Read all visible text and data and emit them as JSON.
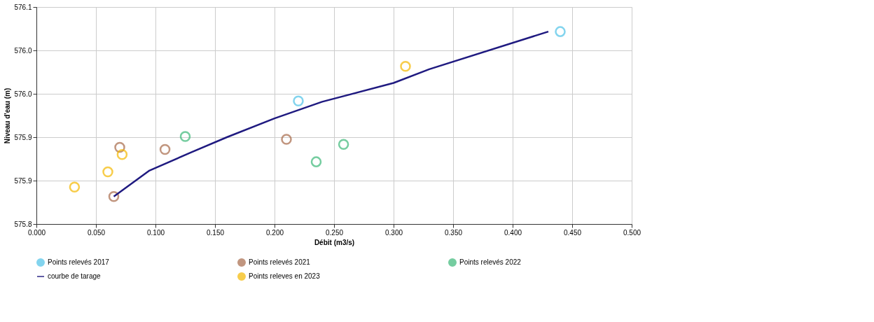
{
  "chart_data": {
    "type": "scatter",
    "xlabel": "Débit (m3/s)",
    "ylabel": "Niveau d'eau (m)",
    "xlim": [
      0,
      0.5
    ],
    "xticks": [
      {
        "value": 0,
        "label": "0.000"
      },
      {
        "value": 0.05,
        "label": "0.050"
      },
      {
        "value": 0.1,
        "label": "0.100"
      },
      {
        "value": 0.15,
        "label": "0.150"
      },
      {
        "value": 0.2,
        "label": "0.200"
      },
      {
        "value": 0.25,
        "label": "0.250"
      },
      {
        "value": 0.3,
        "label": "0.300"
      },
      {
        "value": 0.35,
        "label": "0.350"
      },
      {
        "value": 0.4,
        "label": "0.400"
      },
      {
        "value": 0.45,
        "label": "0.450"
      },
      {
        "value": 0.5,
        "label": "0.500"
      }
    ],
    "ylim": [
      575.8,
      576.1
    ],
    "yticks": [
      {
        "value": 575.8,
        "label": "575.8"
      },
      {
        "value": 575.86,
        "label": "575.9"
      },
      {
        "value": 575.92,
        "label": "575.9"
      },
      {
        "value": 575.98,
        "label": "576.0"
      },
      {
        "value": 576.04,
        "label": "576.0"
      },
      {
        "value": 576.1,
        "label": "576.1"
      }
    ],
    "grid": true,
    "legend": "bottom",
    "series": [
      {
        "name": "Points relevés 2017",
        "marker": "circle",
        "color": "#4fc3e8",
        "x": [
          0.22,
          0.44
        ],
        "values": [
          575.97,
          576.066
        ]
      },
      {
        "name": "Points relevés 2021",
        "marker": "circle",
        "color": "#a86a4a",
        "x": [
          0.065,
          0.07,
          0.108,
          0.21
        ],
        "values": [
          575.838,
          575.906,
          575.903,
          575.917
        ]
      },
      {
        "name": "Points relevés 2022",
        "marker": "circle",
        "color": "#3cb878",
        "x": [
          0.125,
          0.235,
          0.258
        ],
        "values": [
          575.921,
          575.886,
          575.91
        ]
      },
      {
        "name": "courbe de tarage",
        "type": "line",
        "color": "#1f1a80",
        "x": [
          0.065,
          0.095,
          0.13,
          0.16,
          0.2,
          0.24,
          0.3,
          0.33,
          0.43
        ],
        "values": [
          575.838,
          575.874,
          575.899,
          575.92,
          575.946,
          575.969,
          575.995,
          576.014,
          576.066
        ]
      },
      {
        "name": "Points releves en 2023",
        "marker": "circle",
        "color": "#f5b800",
        "x": [
          0.032,
          0.06,
          0.072,
          0.31
        ],
        "values": [
          575.851,
          575.872,
          575.896,
          576.018
        ]
      }
    ]
  }
}
